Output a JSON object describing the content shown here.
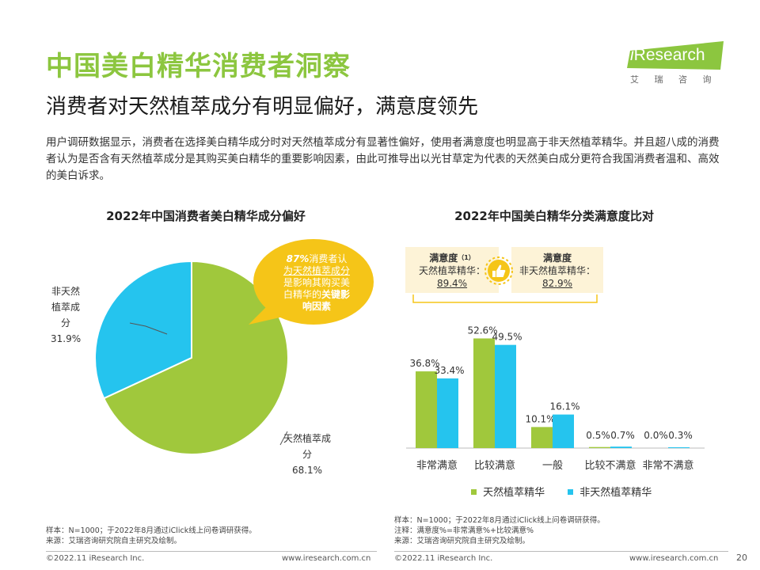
{
  "header": {
    "title": "中国美白精华消费者洞察",
    "subtitle": "消费者对天然植萃成分有明显偏好，满意度领先",
    "description": "用户调研数据显示，消费者在选择美白精华成分时对天然植萃成分有显著性偏好，使用者满意度也明显高于非天然植萃精华。并且超八成的消费者认为是否含有天然植萃成分是其购买美白精华的重要影响因素，由此可推导出以光甘草定为代表的天然美白成分更符合我国消费者温和、高效的美白诉求。"
  },
  "logo": {
    "brand_i": "i",
    "brand_rest": "Research",
    "cn": "艾 瑞 咨 询"
  },
  "pie_callout": {
    "pct": "87%",
    "line1": "消费者认",
    "line2": "为天然植萃成分",
    "line3": "是影响其购买美",
    "line4_a": "白精华的",
    "line4_b": "关键影",
    "line5": "响因素"
  },
  "satisfaction": {
    "left_title": "满意度",
    "left_sup": "（1）",
    "left_label": "天然植萃精华：",
    "left_value": "89.4%",
    "right_title": "满意度",
    "right_label": "非天然植萃精华：",
    "right_value": "82.9%"
  },
  "colors": {
    "green": "#a0c83c",
    "blue": "#25c4ee",
    "title_green": "#8cc63f",
    "callout": "#f5c518"
  },
  "chart_data": [
    {
      "type": "pie",
      "title": "2022年中国消费者美白精华成分偏好",
      "slices": [
        {
          "label_parts": [
            "非天然",
            "植萃成",
            "分"
          ],
          "value": 31.9,
          "value_label": "31.9%",
          "color": "#25c4ee"
        },
        {
          "label_parts": [
            "天然植萃成",
            "分"
          ],
          "value": 68.1,
          "value_label": "68.1%",
          "color": "#a0c83c"
        }
      ]
    },
    {
      "type": "bar",
      "title": "2022年中国美白精华分类满意度比对",
      "categories": [
        "非常满意",
        "比较满意",
        "一般",
        "比较不满意",
        "非常不满意"
      ],
      "series": [
        {
          "name": "天然植萃精华",
          "color": "#a0c83c",
          "values": [
            36.8,
            52.6,
            10.1,
            0.5,
            0.0
          ],
          "labels": [
            "36.8%",
            "52.6%",
            "10.1%",
            "0.5%",
            "0.0%"
          ]
        },
        {
          "name": "非天然植萃精华",
          "color": "#25c4ee",
          "values": [
            33.4,
            49.5,
            16.1,
            0.7,
            0.3
          ],
          "labels": [
            "33.4%",
            "49.5%",
            "16.1%",
            "0.7%",
            "0.3%"
          ]
        }
      ],
      "ylim": [
        0,
        60
      ]
    }
  ],
  "notes": {
    "left1": "样本：N=1000；于2022年8月通过iClick线上问卷调研获得。",
    "left2": "来源：艾瑞咨询研究院自主研究及绘制。",
    "right1": "样本：N=1000；于2022年8月通过iClick线上问卷调研获得。",
    "right2": "注释：满意度%=非常满意%+比较满意%",
    "right3": "来源：艾瑞咨询研究院自主研究及绘制。"
  },
  "footer": {
    "copyright_left": "©2022.11 iResearch Inc.",
    "site_left": "www.iresearch.com.cn",
    "copyright_right": "©2022.11 iResearch Inc.",
    "site_right": "www.iresearch.com.cn",
    "page_number": "20"
  }
}
